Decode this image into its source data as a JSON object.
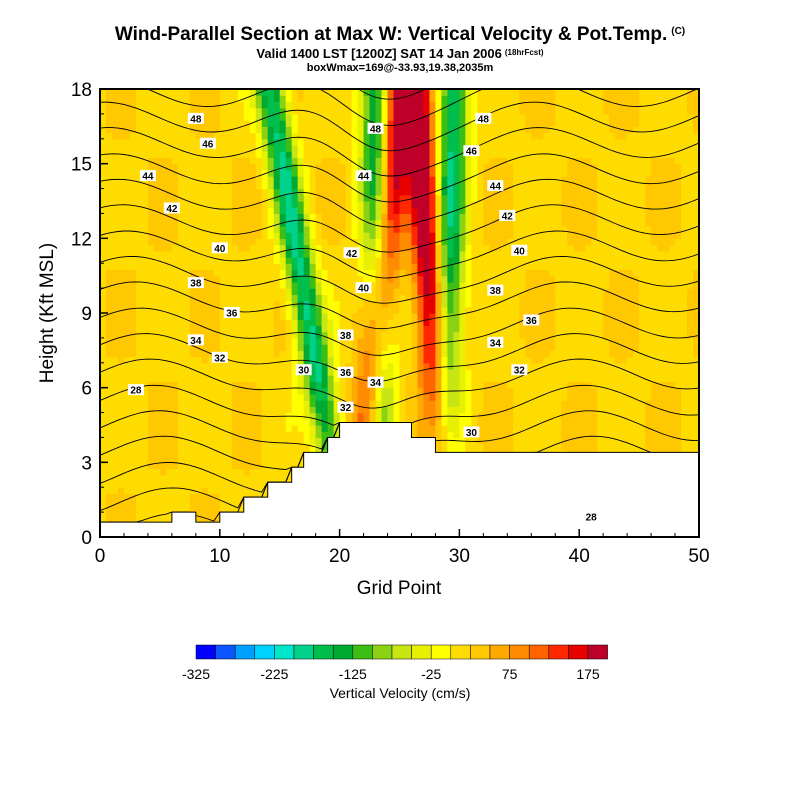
{
  "chart_data": {
    "type": "heatmap",
    "title": "Wind-Parallel Section at Max W: Vertical Velocity & Pot.Temp.",
    "title_mark": "(C)",
    "subtitle": "Valid 1400 LST [1200Z] SAT 14 Jan 2006",
    "subtitle_note": "(18hrFcst)",
    "subtitle2": "boxWmax=169@-33.93,19.38,2035m",
    "xlabel": "Grid Point",
    "ylabel": "Height (Kft MSL)",
    "xlim": [
      0,
      50
    ],
    "ylim": [
      0,
      18
    ],
    "x_ticks": [
      "0",
      "10",
      "20",
      "30",
      "40",
      "50"
    ],
    "y_ticks": [
      "0",
      "3",
      "6",
      "9",
      "12",
      "15",
      "18"
    ],
    "colorbar": {
      "label": "Vertical Velocity (cm/s)",
      "tick_labels": [
        "-325",
        "-225",
        "-125",
        "-25",
        "75",
        "175"
      ],
      "colors": [
        "#0000ff",
        "#0a55ff",
        "#00a0ff",
        "#00d2ff",
        "#00e6c8",
        "#00d28c",
        "#00be4b",
        "#00aa32",
        "#3cbe14",
        "#8cd214",
        "#c8e614",
        "#e6f000",
        "#ffff00",
        "#ffdc00",
        "#ffc800",
        "#ffaa00",
        "#ff8c00",
        "#ff6400",
        "#ff2800",
        "#e60000",
        "#be0028"
      ]
    },
    "terrain_kft": [
      0.6,
      0.6,
      0.6,
      0.6,
      0.6,
      0.6,
      1.0,
      1.0,
      0.6,
      0.6,
      1.0,
      1.0,
      1.6,
      1.6,
      2.2,
      2.2,
      2.8,
      3.4,
      3.4,
      4.0,
      4.6,
      4.6,
      4.6,
      4.6,
      4.6,
      4.6,
      4.0,
      4.0,
      3.4,
      3.4,
      3.4,
      3.4,
      3.4,
      3.4,
      3.4,
      3.4,
      3.4,
      3.4,
      3.4,
      3.4,
      3.4,
      3.4,
      3.4,
      3.4,
      3.4,
      3.4,
      3.4,
      3.4,
      3.4,
      3.4
    ],
    "theta_contours": [
      28,
      30,
      32,
      34,
      36,
      38,
      40,
      42,
      44,
      46,
      48
    ],
    "contour_labels": [
      {
        "text": "48",
        "x": 8,
        "y": 16.8
      },
      {
        "text": "46",
        "x": 9,
        "y": 15.8
      },
      {
        "text": "44",
        "x": 4,
        "y": 14.5
      },
      {
        "text": "42",
        "x": 6,
        "y": 13.2
      },
      {
        "text": "40",
        "x": 10,
        "y": 11.6
      },
      {
        "text": "38",
        "x": 8,
        "y": 10.2
      },
      {
        "text": "36",
        "x": 11,
        "y": 9.0
      },
      {
        "text": "34",
        "x": 8,
        "y": 7.9
      },
      {
        "text": "32",
        "x": 10,
        "y": 7.2
      },
      {
        "text": "28",
        "x": 3,
        "y": 5.9
      },
      {
        "text": "30",
        "x": 17,
        "y": 6.7
      },
      {
        "text": "48",
        "x": 23,
        "y": 16.4
      },
      {
        "text": "44",
        "x": 22,
        "y": 14.5
      },
      {
        "text": "42",
        "x": 21,
        "y": 11.4
      },
      {
        "text": "40",
        "x": 22,
        "y": 10.0
      },
      {
        "text": "38",
        "x": 20.5,
        "y": 8.1
      },
      {
        "text": "36",
        "x": 20.5,
        "y": 6.6
      },
      {
        "text": "32",
        "x": 20.5,
        "y": 5.2
      },
      {
        "text": "34",
        "x": 23,
        "y": 6.2
      },
      {
        "text": "48",
        "x": 32,
        "y": 16.8
      },
      {
        "text": "46",
        "x": 31,
        "y": 15.5
      },
      {
        "text": "44",
        "x": 33,
        "y": 14.1
      },
      {
        "text": "42",
        "x": 34,
        "y": 12.9
      },
      {
        "text": "40",
        "x": 35,
        "y": 11.5
      },
      {
        "text": "38",
        "x": 33,
        "y": 9.9
      },
      {
        "text": "36",
        "x": 36,
        "y": 8.7
      },
      {
        "text": "34",
        "x": 33,
        "y": 7.8
      },
      {
        "text": "32",
        "x": 35,
        "y": 6.7
      },
      {
        "text": "30",
        "x": 31,
        "y": 4.2
      },
      {
        "text": "28",
        "x": 41,
        "y": 0.8
      }
    ],
    "updraft_axes": [
      {
        "name": "downdraft-west",
        "x0": 20.4,
        "x1": 14.2,
        "sign": -1
      },
      {
        "name": "updraft-central",
        "x0": 21.6,
        "x1": 25.0,
        "sign": 1
      },
      {
        "name": "downdraft-central",
        "x0": 23.5,
        "x1": 23.0,
        "sign": -1
      },
      {
        "name": "updraft-east",
        "x0": 29.0,
        "x1": 26.5,
        "sign": 1
      },
      {
        "name": "downdraft-east",
        "x0": 28.5,
        "x1": 29.5,
        "sign": -1
      }
    ]
  }
}
